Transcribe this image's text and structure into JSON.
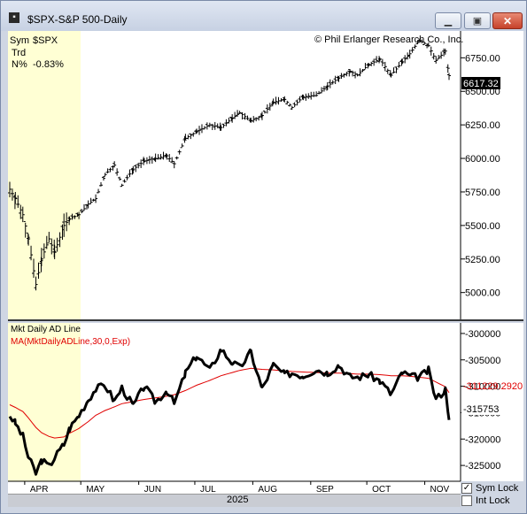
{
  "window": {
    "title": "$SPX-S&P 500-Daily",
    "minimize_icon": "minimize-icon",
    "maximize_icon": "maximize-icon",
    "close_icon": "close-icon"
  },
  "info": {
    "sym_label": "Sym",
    "sym_value": "$SPX",
    "trd_label": "Trd",
    "n_label": "N%",
    "n_value": "-0.83%",
    "copyright": "© Phil Erlanger Research Co., Inc."
  },
  "upper": {
    "last_value_label": "6617.32",
    "y_ticks": [
      "6750.00",
      "6500.00",
      "6250.00",
      "6000.00",
      "5750.00",
      "5500.00",
      "5250.00",
      "5000.00"
    ]
  },
  "lower": {
    "title_ad": "Mkt Daily AD Line",
    "title_ma": "MA(MktDailyADLine,30,0,Exp)",
    "ma_color": "#e00000",
    "ad_color": "#000000",
    "ma_value_label": "-311229.2920",
    "ad_value_label": "-315753",
    "y_ticks": [
      "-300000",
      "-305000",
      "-310000",
      "-315000",
      "-320000",
      "-325000"
    ]
  },
  "x_axis": {
    "months": [
      "APR",
      "MAY",
      "JUN",
      "JUL",
      "AUG",
      "SEP",
      "OCT",
      "NOV"
    ],
    "year": "2025"
  },
  "controls": {
    "sym_lock_label": "Sym Lock",
    "sym_lock_checked": true,
    "int_lock_label": "Int Lock",
    "int_lock_checked": false
  },
  "colors": {
    "yellow_bg": "#ffffd4",
    "white_bg": "#ffffff",
    "bar_color": "#000000"
  },
  "chart_data": [
    {
      "type": "ohlc",
      "title": "$SPX-S&P 500-Daily",
      "ylim": [
        4800,
        6950
      ],
      "x": [
        "2025-03-24",
        "2025-03-27",
        "2025-03-31",
        "2025-04-03",
        "2025-04-07",
        "2025-04-10",
        "2025-04-14",
        "2025-04-17",
        "2025-04-22",
        "2025-04-25",
        "2025-04-30",
        "2025-05-05",
        "2025-05-09",
        "2025-05-14",
        "2025-05-19",
        "2025-05-23",
        "2025-05-29",
        "2025-06-04",
        "2025-06-10",
        "2025-06-16",
        "2025-06-20",
        "2025-06-26",
        "2025-07-02",
        "2025-07-09",
        "2025-07-15",
        "2025-07-21",
        "2025-07-25",
        "2025-07-31",
        "2025-08-06",
        "2025-08-12",
        "2025-08-18",
        "2025-08-22",
        "2025-08-28",
        "2025-09-04",
        "2025-09-10",
        "2025-09-16",
        "2025-09-22",
        "2025-09-26",
        "2025-10-02",
        "2025-10-08",
        "2025-10-14",
        "2025-10-20",
        "2025-10-24",
        "2025-10-29",
        "2025-11-03",
        "2025-11-07",
        "2025-11-12",
        "2025-11-14"
      ],
      "close": [
        5770,
        5700,
        5580,
        5400,
        5060,
        5250,
        5400,
        5300,
        5500,
        5550,
        5580,
        5660,
        5700,
        5880,
        5950,
        5800,
        5920,
        5980,
        6000,
        6020,
        5960,
        6150,
        6200,
        6250,
        6230,
        6300,
        6340,
        6280,
        6320,
        6420,
        6440,
        6380,
        6460,
        6470,
        6540,
        6600,
        6650,
        6620,
        6700,
        6740,
        6620,
        6720,
        6780,
        6880,
        6840,
        6730,
        6800,
        6617.32
      ]
    },
    {
      "type": "line",
      "title": "Mkt Daily AD Line",
      "ylim": [
        -328000,
        -298000
      ],
      "series": [
        {
          "name": "Mkt Daily AD Line",
          "values": [
            -315500,
            -317000,
            -319500,
            -323500,
            -326500,
            -324000,
            -325200,
            -323500,
            -321000,
            -318000,
            -315500,
            -312500,
            -310500,
            -309800,
            -312800,
            -310300,
            -313700,
            -310000,
            -313000,
            -310800,
            -313300,
            -307500,
            -304200,
            -307000,
            -303000,
            -305500,
            -306500,
            -303500,
            -310500,
            -306000,
            -307800,
            -307500,
            -308000,
            -306800,
            -307500,
            -306000,
            -308200,
            -308300,
            -307800,
            -309000,
            -311500,
            -307400,
            -308100,
            -308300,
            -307000,
            -312500,
            -310600,
            -315753
          ]
        },
        {
          "name": "MA(MktDailyADLine,30,0,Exp)",
          "values": [
            -313500,
            -314000,
            -314800,
            -316000,
            -317800,
            -318800,
            -319500,
            -319800,
            -319600,
            -318900,
            -318000,
            -316700,
            -315500,
            -314600,
            -313900,
            -313300,
            -312900,
            -312500,
            -312200,
            -311900,
            -311600,
            -310800,
            -309800,
            -308900,
            -308000,
            -307400,
            -307000,
            -306600,
            -306800,
            -306900,
            -307100,
            -307200,
            -307300,
            -307400,
            -307500,
            -307500,
            -307600,
            -307700,
            -307700,
            -307800,
            -308000,
            -308000,
            -308100,
            -308300,
            -308500,
            -309200,
            -310100,
            -311229.292
          ]
        }
      ]
    }
  ]
}
